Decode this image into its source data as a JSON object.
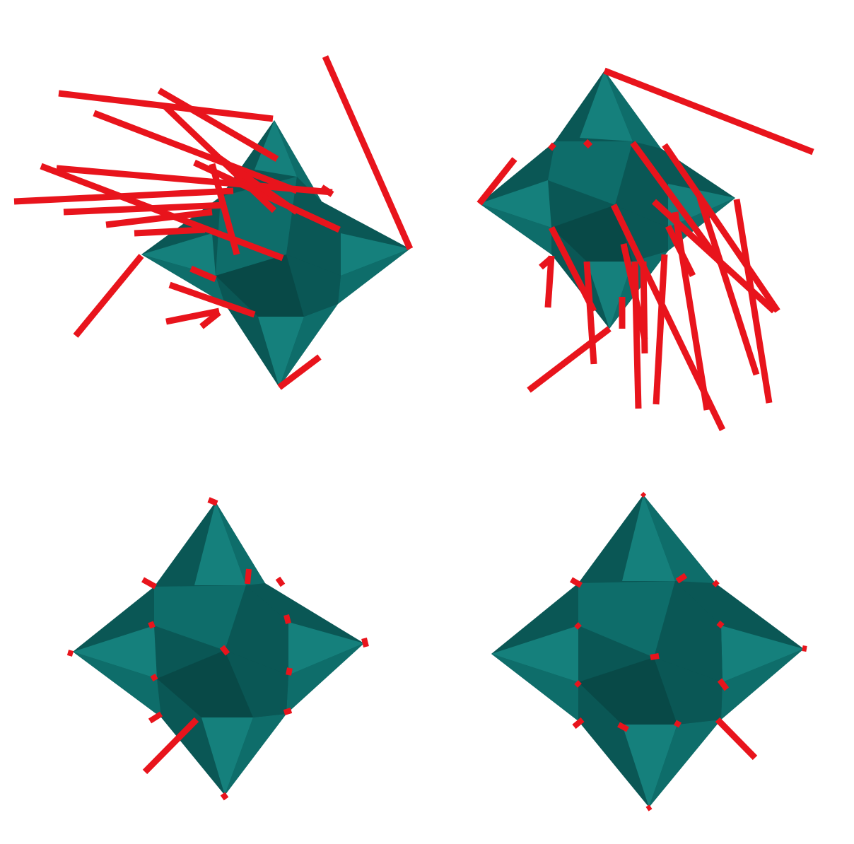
{
  "figure": {
    "panels": [
      {
        "id": "top-left",
        "description_label": ""
      },
      {
        "id": "top-right",
        "description_label": ""
      },
      {
        "id": "bottom-left",
        "description_label": ""
      },
      {
        "id": "bottom-right",
        "description_label": ""
      }
    ]
  },
  "colors": {
    "polyhedron_light": "#15807c",
    "polyhedron_mid": "#0e6d6a",
    "polyhedron_dark": "#0a5755",
    "rod": "#e8141c",
    "rod_shadow": "#8a0a10",
    "background": "#ffffff"
  }
}
